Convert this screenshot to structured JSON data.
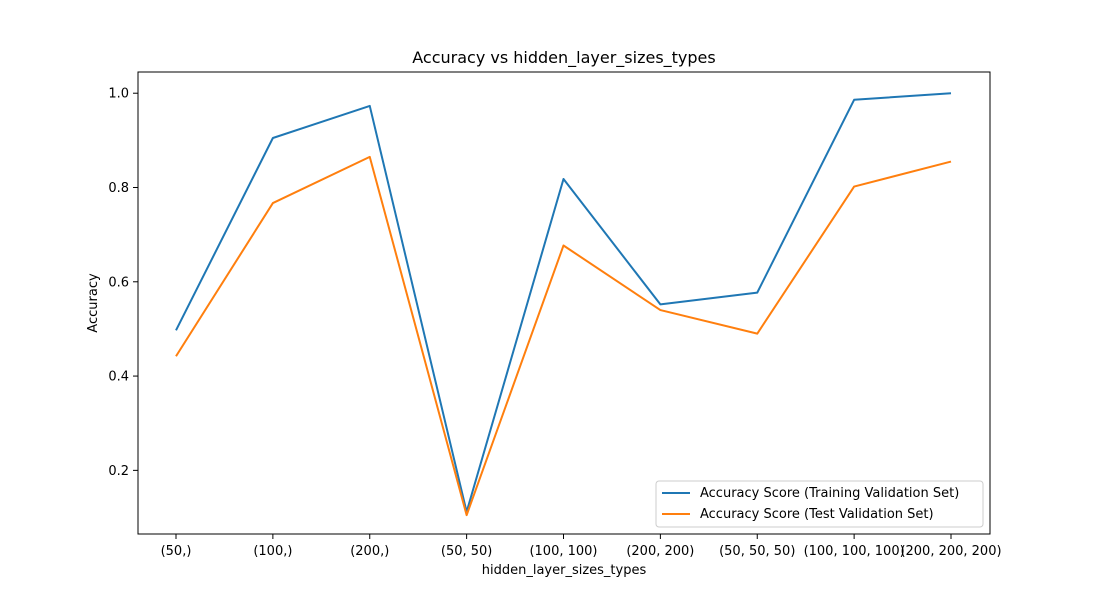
{
  "chart_data": {
    "type": "line",
    "title": "Accuracy vs hidden_layer_sizes_types",
    "xlabel": "hidden_layer_sizes_types",
    "ylabel": "Accuracy",
    "categories": [
      "(50,)",
      "(100,)",
      "(200,)",
      "(50, 50)",
      "(100, 100)",
      "(200, 200)",
      "(50, 50, 50)",
      "(100, 100, 100)",
      "(200, 200, 200)"
    ],
    "ylim": [
      0.065,
      1.045
    ],
    "yticks": [
      0.2,
      0.4,
      0.6,
      0.8,
      1.0
    ],
    "ytick_labels": [
      "0.2",
      "0.4",
      "0.6",
      "0.8",
      "1.0"
    ],
    "grid": false,
    "legend_position": "lower-right",
    "series": [
      {
        "name": "Accuracy Score (Training Validation Set)",
        "color": "#1f77b4",
        "values": [
          0.497,
          0.905,
          0.973,
          0.112,
          0.818,
          0.552,
          0.577,
          0.986,
          1.0
        ]
      },
      {
        "name": "Accuracy Score (Test Validation Set)",
        "color": "#ff7f0e",
        "values": [
          0.442,
          0.767,
          0.865,
          0.105,
          0.677,
          0.54,
          0.49,
          0.802,
          0.855
        ]
      }
    ]
  }
}
